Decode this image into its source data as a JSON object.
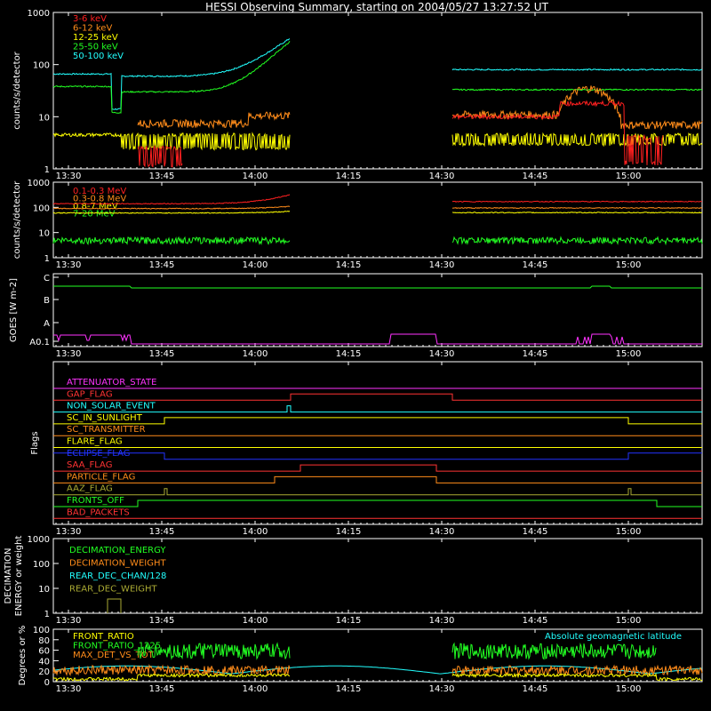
{
  "title": "HESSI Observing Summary, starting on 2004/05/27 13:27:52 UT",
  "time_ticks": [
    "13:30",
    "13:45",
    "14:00",
    "14:15",
    "14:30",
    "14:45",
    "15:00"
  ],
  "chart_data": [
    {
      "type": "line",
      "ylabel": "counts/s/detector",
      "yscale": "log",
      "ylim": [
        1,
        1000
      ],
      "yticks": [
        "1",
        "10",
        "100",
        "1000"
      ],
      "series": [
        {
          "name": "3-6 keV",
          "color": "#ff2020"
        },
        {
          "name": "6-12 keV",
          "color": "#ff8c1a"
        },
        {
          "name": "12-25 keV",
          "color": "#ffff00"
        },
        {
          "name": "25-50 keV",
          "color": "#22ff22"
        },
        {
          "name": "50-100 keV",
          "color": "#22ffff"
        }
      ],
      "values_note_segments": {
        "c50": [
          [
            0,
            66
          ],
          [
            0.2,
            66
          ],
          [
            0.21,
            14
          ],
          [
            0.25,
            14
          ],
          [
            0.26,
            60
          ],
          [
            0.5,
            60
          ],
          [
            0.8,
            95
          ],
          [
            1,
            370
          ]
        ],
        "c25": [
          [
            0,
            38
          ],
          [
            0.2,
            38
          ],
          [
            0.21,
            12
          ],
          [
            0.25,
            12
          ],
          [
            0.26,
            30
          ],
          [
            0.5,
            32
          ],
          [
            0.8,
            55
          ],
          [
            1,
            300
          ]
        ],
        "c12": [
          [
            0,
            4.5
          ],
          [
            1,
            4.5
          ]
        ],
        "c6": [
          [
            0.3,
            7
          ],
          [
            0.7,
            8
          ],
          [
            1,
            10
          ]
        ],
        "c3": [
          [
            0.3,
            2
          ],
          [
            0.7,
            2
          ],
          [
            1,
            3
          ]
        ]
      }
    },
    {
      "type": "line",
      "ylabel": "counts/s/detector",
      "yscale": "log",
      "ylim": [
        1,
        1000
      ],
      "yticks": [
        "1",
        "10",
        "100",
        "1000"
      ],
      "series": [
        {
          "name": "0.1-0.3 MeV",
          "color": "#ff2020"
        },
        {
          "name": "0.3-0.8 MeV",
          "color": "#ff8c1a"
        },
        {
          "name": "0.8-7 MeV",
          "color": "#ffff00"
        },
        {
          "name": "7-20 MeV",
          "color": "#22ff22"
        }
      ]
    },
    {
      "type": "line",
      "ylabel": "GOES [W m-2]",
      "yticks": [
        "A0.1",
        "A",
        "B",
        "C"
      ],
      "series": [
        {
          "name": "GOES high",
          "color": "#22ff22"
        },
        {
          "name": "GOES low",
          "color": "#ff33ff"
        }
      ]
    },
    {
      "type": "line",
      "ylabel": "Flags",
      "series": [
        {
          "name": "ATTENUATOR_STATE",
          "color": "#ff33ff"
        },
        {
          "name": "GAP_FLAG",
          "color": "#ff3333"
        },
        {
          "name": "NON_SOLAR_EVENT",
          "color": "#22ffff"
        },
        {
          "name": "SC_IN_SUNLIGHT",
          "color": "#ffff00"
        },
        {
          "name": "SC_TRANSMITTER",
          "color": "#ff8c1a"
        },
        {
          "name": "FLARE_FLAG",
          "color": "#ffff00"
        },
        {
          "name": "ECLIPSE_FLAG",
          "color": "#2233ff"
        },
        {
          "name": "SAA_FLAG",
          "color": "#ff3333"
        },
        {
          "name": "PARTICLE_FLAG",
          "color": "#ff8c1a"
        },
        {
          "name": "AAZ_FLAG",
          "color": "#aaaa33"
        },
        {
          "name": "FRONTS_OFF",
          "color": "#22ff22"
        },
        {
          "name": "BAD_PACKETS",
          "color": "#ff3333"
        }
      ]
    },
    {
      "type": "line",
      "ylabel": "DECIMATION ENERGY or weight",
      "yscale": "log",
      "ylim": [
        1,
        1000
      ],
      "yticks": [
        "1",
        "10",
        "100",
        "1000"
      ],
      "series": [
        {
          "name": "DECIMATION_ENERGY",
          "color": "#22ff22"
        },
        {
          "name": "DECIMATION_WEIGHT",
          "color": "#ff8c1a"
        },
        {
          "name": "REAR_DEC_CHAN/128",
          "color": "#22ffff"
        },
        {
          "name": "REAR_DEC_WEIGHT",
          "color": "#aaaa33"
        }
      ]
    },
    {
      "type": "line",
      "ylabel": "Degrees or %",
      "ylim": [
        0,
        100
      ],
      "yticks": [
        "0",
        "20",
        "40",
        "60",
        "80",
        "100"
      ],
      "annotation": "Absolute geomagnetic latitude",
      "series": [
        {
          "name": "FRONT_RATIO",
          "color": "#ffff00"
        },
        {
          "name": "FRONT_RATIO_1225",
          "color": "#22ff22"
        },
        {
          "name": "MAX_DET_VS_TOT",
          "color": "#ff8c1a"
        }
      ]
    }
  ],
  "colors": {
    "background": "#000000",
    "axes": "#ffffff"
  }
}
